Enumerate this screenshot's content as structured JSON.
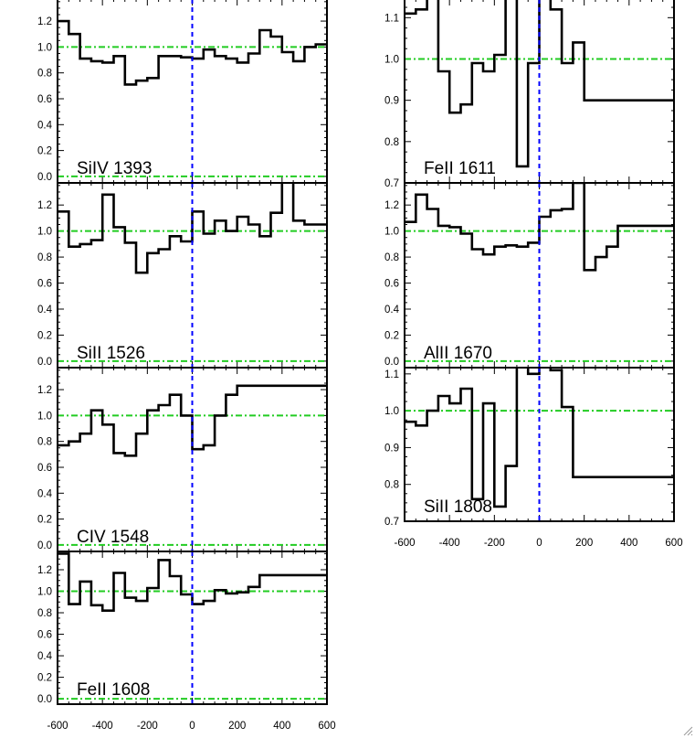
{
  "chart_data": [
    {
      "type": "line",
      "label": "SiIV 1393",
      "ylim": [
        -0.05,
        1.37
      ],
      "yticks": [
        "0.0",
        "0.2",
        "0.4",
        "0.6",
        "0.8",
        "1.0",
        "1.2"
      ],
      "x": [
        -600,
        -550,
        -500,
        -450,
        -400,
        -350,
        -300,
        -250,
        -200,
        -150,
        -100,
        -50,
        0,
        50,
        100,
        150,
        200,
        250,
        300,
        350,
        400,
        450,
        500,
        550
      ],
      "values": [
        1.2,
        1.1,
        0.91,
        0.89,
        0.88,
        0.93,
        0.71,
        0.74,
        0.76,
        0.93,
        0.93,
        0.92,
        0.91,
        0.98,
        0.93,
        0.91,
        0.88,
        0.95,
        1.13,
        1.08,
        0.96,
        0.89,
        1.0,
        1.02
      ]
    },
    {
      "type": "line",
      "label": "SiII 1526",
      "ylim": [
        -0.05,
        1.37
      ],
      "yticks": [
        "0.0",
        "0.2",
        "0.4",
        "0.6",
        "0.8",
        "1.0",
        "1.2"
      ],
      "x": [
        -600,
        -550,
        -500,
        -450,
        -400,
        -350,
        -300,
        -250,
        -200,
        -150,
        -100,
        -50,
        0,
        50,
        100,
        150,
        200,
        250,
        300,
        350,
        400,
        450,
        500,
        550
      ],
      "values": [
        1.15,
        0.88,
        0.9,
        0.93,
        1.28,
        1.03,
        0.91,
        0.68,
        0.83,
        0.86,
        0.96,
        0.92,
        1.15,
        0.98,
        1.08,
        1.0,
        1.11,
        1.05,
        0.96,
        1.14,
        1.38,
        1.08,
        1.05,
        1.05
      ]
    },
    {
      "type": "line",
      "label": "CIV 1548",
      "ylim": [
        -0.05,
        1.37
      ],
      "yticks": [
        "0.0",
        "0.2",
        "0.4",
        "0.6",
        "0.8",
        "1.0",
        "1.2"
      ],
      "x": [
        -600,
        -550,
        -500,
        -450,
        -400,
        -350,
        -300,
        -250,
        -200,
        -150,
        -100,
        -50,
        0,
        50,
        100,
        150,
        200,
        250,
        300,
        350,
        400,
        450,
        500,
        550
      ],
      "values": [
        0.77,
        0.8,
        0.86,
        1.04,
        0.93,
        0.71,
        0.69,
        0.86,
        1.04,
        1.08,
        1.16,
        1.0,
        0.74,
        0.77,
        1.0,
        1.16,
        1.23,
        1.23,
        1.23,
        1.23,
        1.23,
        1.23,
        1.23,
        1.23
      ]
    },
    {
      "type": "line",
      "label": "FeII 1608",
      "ylim": [
        -0.05,
        1.37
      ],
      "yticks": [
        "0.0",
        "0.2",
        "0.4",
        "0.6",
        "0.8",
        "1.0",
        "1.2"
      ],
      "x": [
        -600,
        -550,
        -500,
        -450,
        -400,
        -350,
        -300,
        -250,
        -200,
        -150,
        -100,
        -50,
        0,
        50,
        100,
        150,
        200,
        250,
        300,
        350,
        400,
        450,
        500,
        550
      ],
      "values": [
        1.35,
        0.88,
        1.09,
        0.87,
        0.82,
        1.17,
        0.94,
        0.91,
        1.03,
        1.29,
        1.14,
        0.97,
        0.88,
        0.91,
        1.01,
        0.98,
        0.99,
        1.04,
        1.15,
        1.15,
        1.15,
        1.15,
        1.15,
        1.15
      ]
    },
    {
      "type": "line",
      "label": "FeII 1611",
      "ylim": [
        0.7,
        1.145
      ],
      "yticks": [
        "0.7",
        "0.8",
        "0.9",
        "1.0",
        "1.1"
      ],
      "x": [
        -600,
        -550,
        -500,
        -450,
        -400,
        -350,
        -300,
        -250,
        -200,
        -150,
        -100,
        -50,
        0,
        50,
        100,
        150,
        200,
        250,
        300,
        350,
        400,
        450,
        500,
        550
      ],
      "values": [
        1.11,
        1.12,
        1.15,
        0.97,
        0.87,
        0.89,
        0.99,
        0.97,
        1.01,
        1.15,
        0.74,
        0.99,
        1.16,
        1.12,
        0.99,
        1.04,
        0.9,
        0.9,
        0.9,
        0.9,
        0.9,
        0.9,
        0.9,
        0.9
      ]
    },
    {
      "type": "line",
      "label": "AlII 1670",
      "ylim": [
        -0.05,
        1.37
      ],
      "yticks": [
        "0.0",
        "0.2",
        "0.4",
        "0.6",
        "0.8",
        "1.0",
        "1.2"
      ],
      "x": [
        -600,
        -550,
        -500,
        -450,
        -400,
        -350,
        -300,
        -250,
        -200,
        -150,
        -100,
        -50,
        0,
        50,
        100,
        150,
        200,
        250,
        300,
        350,
        400,
        450,
        500,
        550
      ],
      "values": [
        1.07,
        1.28,
        1.17,
        1.04,
        1.03,
        0.98,
        0.86,
        0.82,
        0.88,
        0.89,
        0.88,
        0.91,
        1.11,
        1.16,
        1.17,
        1.37,
        0.7,
        0.8,
        0.88,
        1.04,
        1.04,
        1.04,
        1.04,
        1.04
      ]
    },
    {
      "type": "line",
      "label": "SiII 1808",
      "ylim": [
        0.7,
        1.117
      ],
      "yticks": [
        "0.7",
        "0.8",
        "0.9",
        "1.0",
        "1.1"
      ],
      "x": [
        -600,
        -550,
        -500,
        -450,
        -400,
        -350,
        -300,
        -250,
        -200,
        -150,
        -100,
        -50,
        0,
        50,
        100,
        150,
        200,
        250,
        300,
        350,
        400,
        450,
        500,
        550
      ],
      "values": [
        0.97,
        0.96,
        1.0,
        1.04,
        1.02,
        1.06,
        0.76,
        1.02,
        0.74,
        0.85,
        1.12,
        1.1,
        1.12,
        1.11,
        1.01,
        0.82,
        0.82,
        0.82,
        0.82,
        0.82,
        0.82,
        0.82,
        0.82,
        0.82
      ]
    }
  ],
  "xaxis": {
    "xlim": [
      -600,
      600
    ],
    "tick_values": [
      -600,
      -400,
      -200,
      0,
      200,
      400,
      600
    ],
    "tick_labels": [
      "-600",
      "-400",
      "-200",
      "0",
      "200",
      "400",
      "600"
    ]
  },
  "reference_lines": {
    "continuum_levels": [
      0.0,
      1.0
    ],
    "continuum_color": "#22cc22",
    "zero_velocity": 0,
    "zero_velocity_color": "#0000ff"
  },
  "spectrum_color": "#000000",
  "icons": {
    "corner": "resize-grip-icon"
  }
}
